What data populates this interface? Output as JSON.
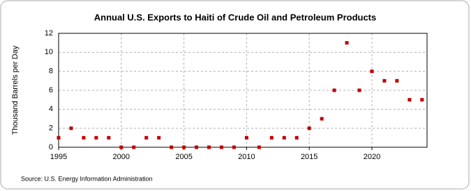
{
  "chart_data": {
    "type": "scatter",
    "title": "Annual U.S. Exports to Haiti of Crude Oil and Petroleum Products",
    "y_label": "Thousand Barrels per Day",
    "source": "Source: U.S. Energy Information Administration",
    "x": [
      1995,
      1996,
      1997,
      1998,
      1999,
      2000,
      2001,
      2002,
      2003,
      2004,
      2005,
      2006,
      2007,
      2008,
      2009,
      2010,
      2011,
      2012,
      2013,
      2014,
      2015,
      2016,
      2017,
      2018,
      2019,
      2020,
      2021,
      2022,
      2023,
      2024
    ],
    "values": [
      1,
      2,
      1,
      1,
      1,
      0,
      0,
      1,
      1,
      0,
      0,
      0,
      0,
      0,
      0,
      1,
      0,
      1,
      1,
      1,
      2,
      3,
      6,
      11,
      6,
      8,
      7,
      7,
      5,
      5
    ],
    "color": "#c00000",
    "xlim": [
      1995,
      2024.4
    ],
    "xticks": [
      1995,
      2000,
      2005,
      2010,
      2015,
      2020
    ],
    "ylim": [
      0,
      12
    ],
    "yticks": [
      0,
      2,
      4,
      6,
      8,
      10,
      12
    ],
    "grid": true
  }
}
